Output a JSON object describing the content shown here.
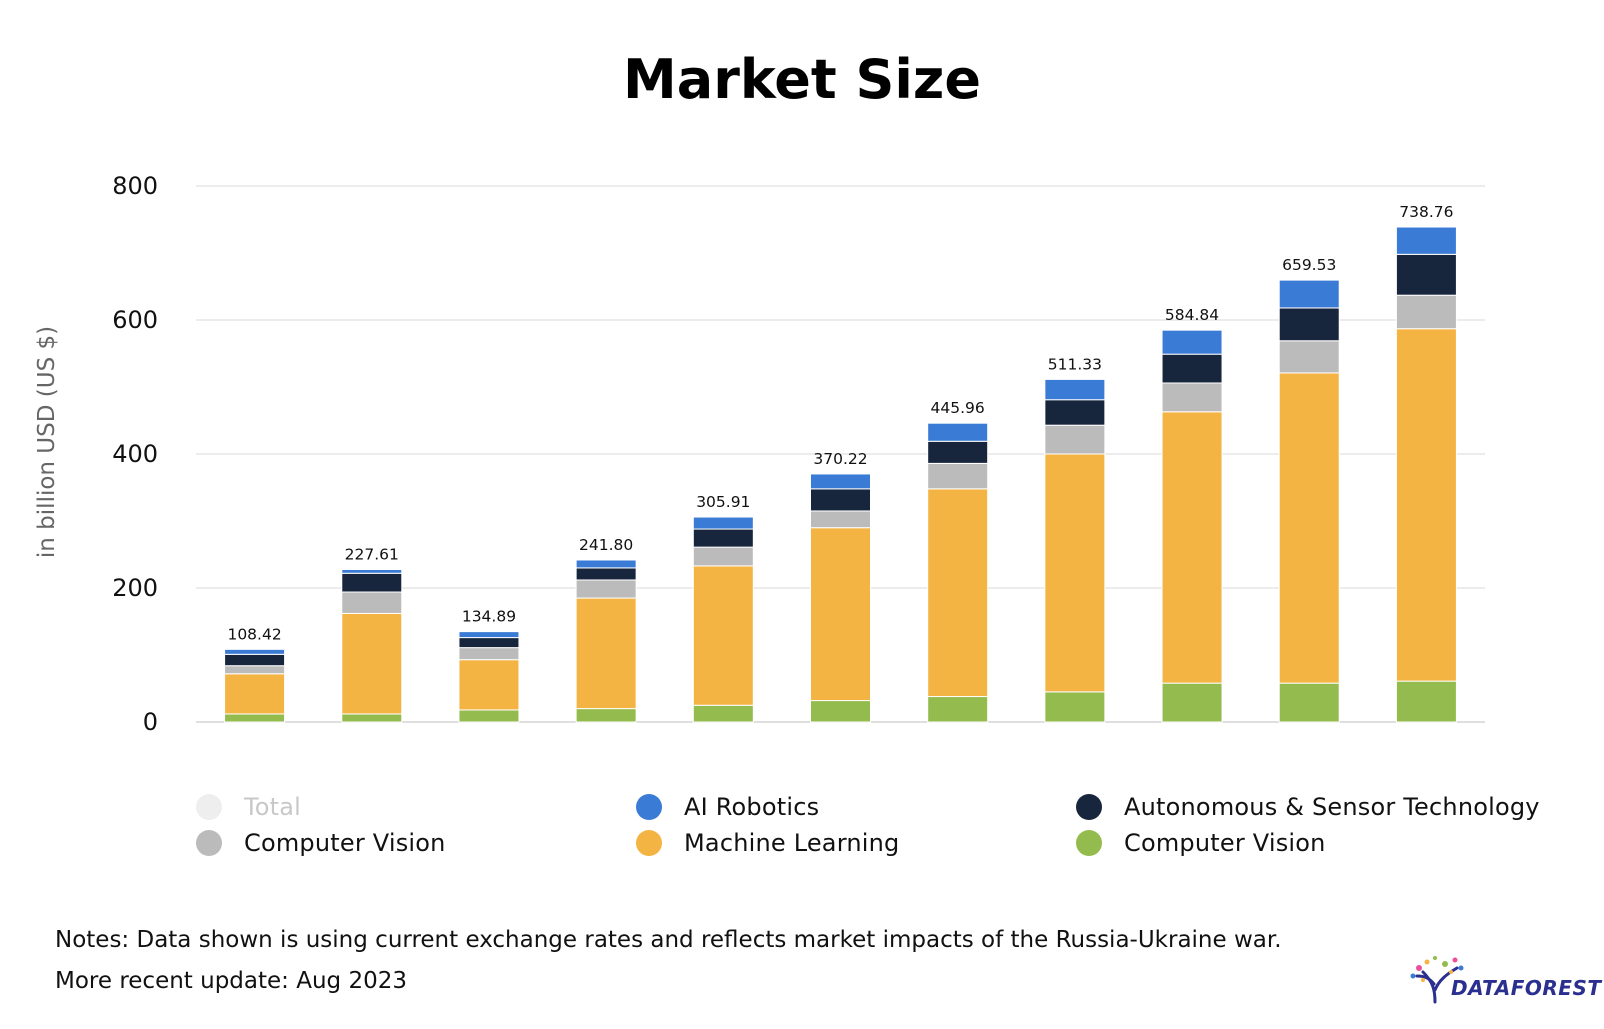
{
  "chart_data": {
    "type": "bar",
    "stacked": true,
    "title": "Market Size",
    "xlabel": "",
    "ylabel": "in billion USD (US $)",
    "ylim": [
      0,
      800
    ],
    "yticks": [
      0,
      200,
      400,
      600,
      800
    ],
    "grid": true,
    "categories": [
      "",
      "",
      "",
      "",
      "",
      "",
      "",
      "",
      "",
      "",
      ""
    ],
    "totals": [
      108.42,
      227.61,
      134.89,
      241.8,
      305.91,
      370.22,
      445.96,
      511.33,
      584.84,
      659.53,
      738.76
    ],
    "total_labels": [
      "108.42",
      "227.61",
      "134.89",
      "241.80",
      "305.91",
      "370.22",
      "445.96",
      "511.33",
      "584.84",
      "659.53",
      "738.76"
    ],
    "series": [
      {
        "name": "Computer Vision",
        "color": "#94bb4d",
        "values": [
          12,
          12,
          18,
          20,
          25,
          32,
          38,
          45,
          58,
          58,
          61
        ]
      },
      {
        "name": "Machine Learning",
        "color": "#f4b443",
        "values": [
          60,
          150,
          75,
          165,
          208,
          258,
          310,
          355,
          405,
          463,
          526
        ]
      },
      {
        "name": "Computer Vision",
        "color": "#bbbbbb",
        "values": [
          12,
          32,
          18,
          27,
          28,
          25,
          38,
          43,
          43,
          48,
          50
        ]
      },
      {
        "name": "Autonomous & Sensor Technology",
        "color": "#17253d",
        "values": [
          17,
          28,
          15,
          18,
          27,
          33,
          33,
          38,
          43,
          49,
          61
        ]
      },
      {
        "name": "AI Robotics",
        "color": "#3a7bd5",
        "values": [
          7.42,
          5.61,
          8.89,
          11.8,
          17.91,
          22.22,
          26.96,
          30.33,
          35.84,
          41.53,
          40.76
        ]
      }
    ],
    "legend": {
      "position": "bottom",
      "items": [
        {
          "label": "Total",
          "color": "#eeeeee",
          "active": false
        },
        {
          "label": "AI Robotics",
          "color": "#3a7bd5",
          "active": true
        },
        {
          "label": "Autonomous & Sensor Technology",
          "color": "#17253d",
          "active": true
        },
        {
          "label": "Computer Vision",
          "color": "#bbbbbb",
          "active": true
        },
        {
          "label": "Machine Learning",
          "color": "#f4b443",
          "active": true
        },
        {
          "label": "Computer Vision",
          "color": "#94bb4d",
          "active": true
        }
      ]
    }
  },
  "notes": {
    "line1": "Notes: Data shown is using current exchange rates and reflects market impacts of the Russia-Ukraine war.",
    "line2": "More recent update: Aug 2023"
  },
  "logo": {
    "text": "DATAFOREST",
    "color": "#2b2f8f"
  }
}
